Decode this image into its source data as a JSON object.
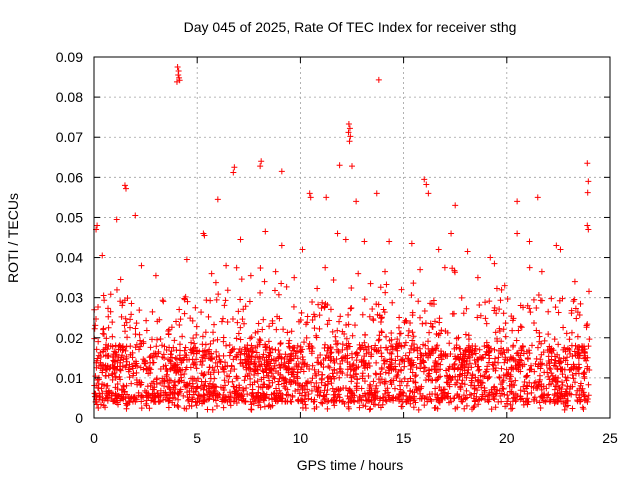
{
  "chart_data": {
    "type": "scatter",
    "title": "Day 045 of 2025, Rate Of TEC Index for receiver sthg",
    "xlabel": "GPS time / hours",
    "ylabel": "ROTI / TECUs",
    "xlim": [
      0,
      25
    ],
    "ylim": [
      0,
      0.09
    ],
    "xticks": [
      "0",
      "5",
      "10",
      "15",
      "20",
      "25"
    ],
    "yticks": [
      "0",
      "0.01",
      "0.02",
      "0.03",
      "0.04",
      "0.05",
      "0.06",
      "0.07",
      "0.08",
      "0.09"
    ],
    "grid": true,
    "marker": "+",
    "series_color": "#ff0000",
    "baseline": {
      "hours": [
        0,
        24
      ],
      "typical_roti": [
        0.004,
        0.018
      ]
    },
    "points": [
      [
        4.05,
        0.0875
      ],
      [
        4.1,
        0.0865
      ],
      [
        4.08,
        0.0855
      ],
      [
        4.12,
        0.0848
      ],
      [
        4.15,
        0.0842
      ],
      [
        4.02,
        0.0838
      ],
      [
        13.8,
        0.0843
      ],
      [
        12.35,
        0.0733
      ],
      [
        12.4,
        0.0722
      ],
      [
        12.33,
        0.0712
      ],
      [
        12.42,
        0.0702
      ],
      [
        12.38,
        0.069
      ],
      [
        6.8,
        0.0625
      ],
      [
        6.75,
        0.0612
      ],
      [
        8.1,
        0.064
      ],
      [
        8.05,
        0.0628
      ],
      [
        9.1,
        0.0615
      ],
      [
        11.9,
        0.063
      ],
      [
        12.5,
        0.0628
      ],
      [
        1.5,
        0.058
      ],
      [
        1.55,
        0.0572
      ],
      [
        23.9,
        0.0635
      ],
      [
        23.95,
        0.059
      ],
      [
        23.92,
        0.0562
      ],
      [
        16.0,
        0.0595
      ],
      [
        16.1,
        0.0582
      ],
      [
        16.2,
        0.056
      ],
      [
        13.7,
        0.056
      ],
      [
        21.5,
        0.055
      ],
      [
        20.5,
        0.054
      ],
      [
        17.5,
        0.053
      ],
      [
        12.7,
        0.054
      ],
      [
        10.45,
        0.056
      ],
      [
        10.5,
        0.055
      ],
      [
        11.25,
        0.055
      ],
      [
        6.0,
        0.0545
      ],
      [
        2.0,
        0.0505
      ],
      [
        0.15,
        0.048
      ],
      [
        0.1,
        0.047
      ],
      [
        23.9,
        0.048
      ],
      [
        23.95,
        0.047
      ],
      [
        1.1,
        0.0495
      ],
      [
        5.3,
        0.046
      ],
      [
        5.35,
        0.0455
      ],
      [
        7.1,
        0.0445
      ],
      [
        8.3,
        0.0465
      ],
      [
        9.1,
        0.043
      ],
      [
        10.1,
        0.042
      ],
      [
        11.8,
        0.046
      ],
      [
        12.2,
        0.0445
      ],
      [
        13.1,
        0.044
      ],
      [
        14.3,
        0.044
      ],
      [
        15.4,
        0.0435
      ],
      [
        16.7,
        0.042
      ],
      [
        17.3,
        0.046
      ],
      [
        18.1,
        0.0415
      ],
      [
        19.2,
        0.04
      ],
      [
        19.4,
        0.0385
      ],
      [
        20.5,
        0.046
      ],
      [
        21.1,
        0.044
      ],
      [
        22.4,
        0.043
      ],
      [
        22.6,
        0.042
      ],
      [
        0.4,
        0.0405
      ],
      [
        2.3,
        0.038
      ],
      [
        3.0,
        0.0355
      ],
      [
        4.5,
        0.0395
      ],
      [
        5.7,
        0.036
      ],
      [
        6.4,
        0.038
      ],
      [
        7.6,
        0.0355
      ],
      [
        8.8,
        0.0365
      ],
      [
        9.7,
        0.035
      ],
      [
        11.2,
        0.0375
      ],
      [
        12.8,
        0.036
      ],
      [
        13.4,
        0.0335
      ],
      [
        14.1,
        0.0365
      ],
      [
        14.9,
        0.032
      ],
      [
        15.8,
        0.037
      ],
      [
        17.0,
        0.0375
      ],
      [
        18.6,
        0.035
      ],
      [
        19.9,
        0.033
      ],
      [
        21.7,
        0.0365
      ],
      [
        23.3,
        0.034
      ]
    ]
  }
}
